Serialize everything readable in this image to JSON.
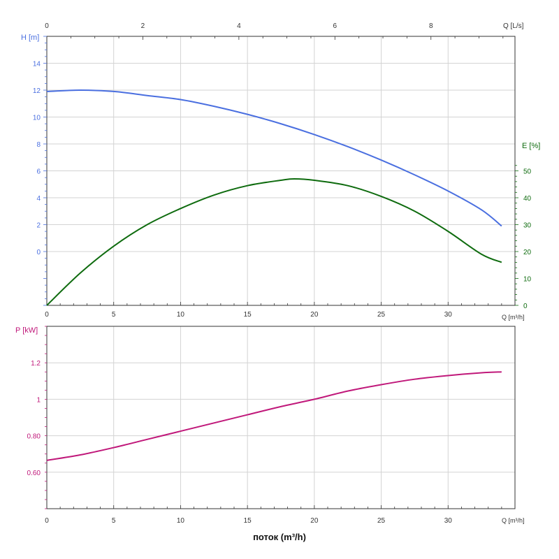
{
  "colors": {
    "head": "#4a6fe0",
    "efficiency": "#0e6b0e",
    "power": "#c0187a",
    "grid": "#d3d3d3",
    "axis": "#333333"
  },
  "chart_data": [
    {
      "type": "line",
      "top_x_label": "Q [L/s]",
      "top_x_ticks": [
        "0",
        "2",
        "4",
        "6",
        "8"
      ],
      "top_x_range": [
        0,
        9.75
      ],
      "xlabel": "Q [m³/h]",
      "x_ticks": [
        "0",
        "5",
        "10",
        "15",
        "20",
        "25",
        "30"
      ],
      "xlim": [
        0,
        35
      ],
      "ylabel_left": "H [m]",
      "y_left_ticks": [
        "0",
        "2",
        "4",
        "6",
        "8",
        "10",
        "12",
        "14"
      ],
      "ylim_left": [
        -4,
        16
      ],
      "ylabel_right": "E [%]",
      "y_right_ticks": [
        "0",
        "10",
        "20",
        "30",
        "40",
        "50"
      ],
      "ylim_right": [
        0,
        100
      ],
      "grid": true,
      "series": [
        {
          "axis": "left",
          "x": [
            0,
            2.5,
            5,
            7.5,
            10,
            12.5,
            15,
            17.5,
            20,
            22.5,
            25,
            27.5,
            30,
            32.5,
            34
          ],
          "values": [
            11.9,
            12.0,
            11.9,
            11.6,
            11.3,
            10.8,
            10.2,
            9.5,
            8.7,
            7.8,
            6.8,
            5.7,
            4.5,
            3.1,
            1.9
          ]
        },
        {
          "axis": "right",
          "x": [
            0,
            2.5,
            5,
            7.5,
            10,
            12.5,
            15,
            17.5,
            18.5,
            20,
            22.5,
            25,
            27.5,
            30,
            32.5,
            34
          ],
          "values": [
            0,
            12,
            22,
            30,
            36,
            41,
            44.5,
            46.5,
            47,
            46.5,
            44.5,
            40.5,
            35,
            27.5,
            19,
            16
          ]
        }
      ]
    },
    {
      "type": "line",
      "xlabel": "Q [m³/h]",
      "x_ticks": [
        "0",
        "5",
        "10",
        "15",
        "20",
        "25",
        "30"
      ],
      "xlim": [
        0,
        35
      ],
      "ylabel": "P [kW]",
      "y_ticks": [
        "0.60",
        "0.80",
        "1",
        "1.2"
      ],
      "ylim": [
        0.4,
        1.4
      ],
      "grid": true,
      "series": [
        {
          "x": [
            0,
            2.5,
            5,
            7.5,
            10,
            12.5,
            15,
            17.5,
            20,
            22.5,
            25,
            27.5,
            30,
            32.5,
            34
          ],
          "values": [
            0.665,
            0.695,
            0.735,
            0.78,
            0.825,
            0.87,
            0.915,
            0.96,
            1.0,
            1.045,
            1.08,
            1.11,
            1.13,
            1.145,
            1.15
          ]
        }
      ]
    }
  ],
  "footer": {
    "xlabel": "поток (m³/h)"
  }
}
